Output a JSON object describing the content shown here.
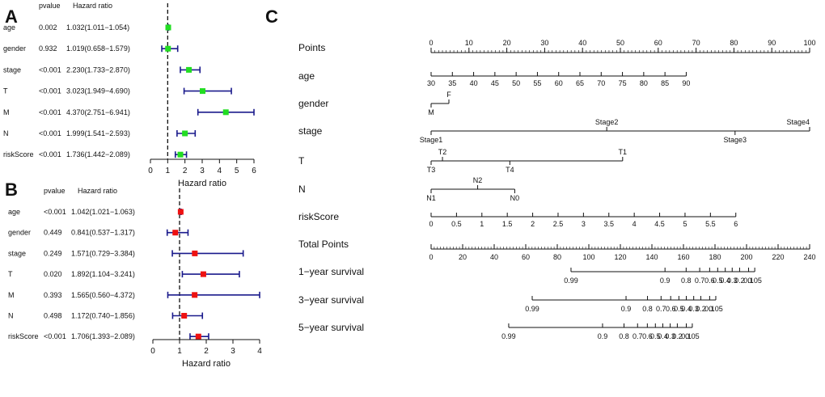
{
  "panels": {
    "A": "A",
    "B": "B",
    "C": "C"
  },
  "forest_headers": {
    "pvalue": "pvalue",
    "hr": "Hazard ratio"
  },
  "chart_data": [
    {
      "type": "forest",
      "panel": "A",
      "xlabel": "Hazard ratio",
      "xlim": [
        0,
        6
      ],
      "xticks": [
        0,
        1,
        2,
        3,
        4,
        5,
        6
      ],
      "reference_line": 1,
      "marker_color": "#22dd22",
      "ci_color": "#1a1a8c",
      "rows": [
        {
          "label": "age",
          "pvalue": "0.002",
          "hr_text": "1.032(1.011−1.054)",
          "hr": 1.032,
          "lo": 1.011,
          "hi": 1.054
        },
        {
          "label": "gender",
          "pvalue": "0.932",
          "hr_text": "1.019(0.658−1.579)",
          "hr": 1.019,
          "lo": 0.658,
          "hi": 1.579
        },
        {
          "label": "stage",
          "pvalue": "<0.001",
          "hr_text": "2.230(1.733−2.870)",
          "hr": 2.23,
          "lo": 1.733,
          "hi": 2.87
        },
        {
          "label": "T",
          "pvalue": "<0.001",
          "hr_text": "3.023(1.949−4.690)",
          "hr": 3.023,
          "lo": 1.949,
          "hi": 4.69
        },
        {
          "label": "M",
          "pvalue": "<0.001",
          "hr_text": "4.370(2.751−6.941)",
          "hr": 4.37,
          "lo": 2.751,
          "hi": 6.941
        },
        {
          "label": "N",
          "pvalue": "<0.001",
          "hr_text": "1.999(1.541−2.593)",
          "hr": 1.999,
          "lo": 1.541,
          "hi": 2.593
        },
        {
          "label": "riskScore",
          "pvalue": "<0.001",
          "hr_text": "1.736(1.442−2.089)",
          "hr": 1.736,
          "lo": 1.442,
          "hi": 2.089
        }
      ]
    },
    {
      "type": "forest",
      "panel": "B",
      "xlabel": "Hazard ratio",
      "xlim": [
        0,
        4
      ],
      "xticks": [
        0,
        1,
        2,
        3,
        4
      ],
      "reference_line": 1,
      "marker_color": "#ee1111",
      "ci_color": "#1a1a8c",
      "rows": [
        {
          "label": "age",
          "pvalue": "<0.001",
          "hr_text": "1.042(1.021−1.063)",
          "hr": 1.042,
          "lo": 1.021,
          "hi": 1.063
        },
        {
          "label": "gender",
          "pvalue": "0.449",
          "hr_text": "0.841(0.537−1.317)",
          "hr": 0.841,
          "lo": 0.537,
          "hi": 1.317
        },
        {
          "label": "stage",
          "pvalue": "0.249",
          "hr_text": "1.571(0.729−3.384)",
          "hr": 1.571,
          "lo": 0.729,
          "hi": 3.384
        },
        {
          "label": "T",
          "pvalue": "0.020",
          "hr_text": "1.892(1.104−3.241)",
          "hr": 1.892,
          "lo": 1.104,
          "hi": 3.241
        },
        {
          "label": "M",
          "pvalue": "0.393",
          "hr_text": "1.565(0.560−4.372)",
          "hr": 1.565,
          "lo": 0.56,
          "hi": 4.372
        },
        {
          "label": "N",
          "pvalue": "0.498",
          "hr_text": "1.172(0.740−1.856)",
          "hr": 1.172,
          "lo": 0.74,
          "hi": 1.856
        },
        {
          "label": "riskScore",
          "pvalue": "<0.001",
          "hr_text": "1.706(1.393−2.089)",
          "hr": 1.706,
          "lo": 1.393,
          "hi": 2.089
        }
      ]
    },
    {
      "type": "nomogram",
      "panel": "C",
      "points_scale": [
        0,
        100
      ],
      "total_points_scale": [
        0,
        240
      ],
      "rows": [
        {
          "label": "Points",
          "kind": "points",
          "range": [
            0,
            100
          ],
          "labels": [
            0,
            10,
            20,
            30,
            40,
            50,
            60,
            70,
            80,
            90,
            100
          ],
          "minor_step": 1
        },
        {
          "label": "age",
          "kind": "linear",
          "from": 30,
          "to": 90,
          "labels": [
            "30",
            "35",
            "40",
            "45",
            "50",
            "55",
            "60",
            "65",
            "70",
            "75",
            "80",
            "85",
            "90"
          ],
          "values": [
            30,
            35,
            40,
            45,
            50,
            55,
            60,
            65,
            70,
            75,
            80,
            85,
            90
          ],
          "end_points": [
            0,
            67.4
          ]
        },
        {
          "label": "gender",
          "kind": "categorical",
          "cats": [
            {
              "name": "M",
              "pts": 0,
              "pos": "below"
            },
            {
              "name": "F",
              "pts": 4.7,
              "pos": "above"
            }
          ]
        },
        {
          "label": "stage",
          "kind": "categorical",
          "cats": [
            {
              "name": "Stage1",
              "pts": 0,
              "pos": "below"
            },
            {
              "name": "Stage2",
              "pts": 46.4,
              "pos": "above"
            },
            {
              "name": "Stage3",
              "pts": 80.3,
              "pos": "below"
            },
            {
              "name": "Stage4",
              "pts": 100,
              "pos": "above"
            }
          ]
        },
        {
          "label": "T",
          "kind": "categorical",
          "cats": [
            {
              "name": "T3",
              "pts": 0,
              "pos": "below"
            },
            {
              "name": "T2",
              "pts": 3,
              "pos": "above"
            },
            {
              "name": "T4",
              "pts": 20.8,
              "pos": "below"
            },
            {
              "name": "T1",
              "pts": 50.6,
              "pos": "above"
            }
          ]
        },
        {
          "label": "N",
          "kind": "categorical",
          "cats": [
            {
              "name": "N1",
              "pts": 0,
              "pos": "below"
            },
            {
              "name": "N2",
              "pts": 12.3,
              "pos": "above"
            },
            {
              "name": "N0",
              "pts": 22.1,
              "pos": "below"
            }
          ]
        },
        {
          "label": "riskScore",
          "kind": "linear",
          "from": 0,
          "to": 6,
          "labels": [
            "0",
            "0.5",
            "1",
            "1.5",
            "2",
            "2.5",
            "3",
            "3.5",
            "4",
            "4.5",
            "5",
            "5.5",
            "6"
          ],
          "values": [
            0,
            0.5,
            1,
            1.5,
            2,
            2.5,
            3,
            3.5,
            4,
            4.5,
            5,
            5.5,
            6
          ],
          "end_points": [
            0,
            80.5
          ]
        },
        {
          "label": "Total Points",
          "kind": "total",
          "range": [
            0,
            240
          ],
          "labels": [
            0,
            20,
            40,
            60,
            80,
            100,
            120,
            140,
            160,
            180,
            200,
            220,
            240
          ],
          "minor_step": 2
        },
        {
          "label": "1−year survival",
          "kind": "survival",
          "ticks": [
            {
              "label": "0.99",
              "total": 88.7
            },
            {
              "label": "0.9",
              "total": 148.3
            },
            {
              "label": "0.8",
              "total": 161.7
            },
            {
              "label": "0.7",
              "total": 170.3
            },
            {
              "label": "0.6",
              "total": 176.6
            },
            {
              "label": "0.5",
              "total": 181.7
            },
            {
              "label": "0.4",
              "total": 186.5
            },
            {
              "label": "0.3",
              "total": 190.9
            },
            {
              "label": "0.2",
              "total": 195.6
            },
            {
              "label": "0.1",
              "total": 201.3
            },
            {
              "label": "0.05",
              "total": 205.2
            }
          ]
        },
        {
          "label": "3−year survival",
          "kind": "survival",
          "ticks": [
            {
              "label": "0.99",
              "total": 64.1
            },
            {
              "label": "0.9",
              "total": 123.6
            },
            {
              "label": "0.8",
              "total": 137.2
            },
            {
              "label": "0.7",
              "total": 145.8
            },
            {
              "label": "0.6",
              "total": 151.9
            },
            {
              "label": "0.5",
              "total": 157.1
            },
            {
              "label": "0.4",
              "total": 161.8
            },
            {
              "label": "0.3",
              "total": 166.5
            },
            {
              "label": "0.2",
              "total": 171.0
            },
            {
              "label": "0.1",
              "total": 176.6
            },
            {
              "label": "0.05",
              "total": 180.5
            }
          ]
        },
        {
          "label": "5−year survival",
          "kind": "survival",
          "ticks": [
            {
              "label": "0.99",
              "total": 49.2
            },
            {
              "label": "0.9",
              "total": 108.7
            },
            {
              "label": "0.8",
              "total": 122.3
            },
            {
              "label": "0.7",
              "total": 130.9
            },
            {
              "label": "0.6",
              "total": 137.1
            },
            {
              "label": "0.5",
              "total": 142.2
            },
            {
              "label": "0.4",
              "total": 146.9
            },
            {
              "label": "0.3",
              "total": 151.6
            },
            {
              "label": "0.2",
              "total": 156.1
            },
            {
              "label": "0.1",
              "total": 161.8
            },
            {
              "label": "0.05",
              "total": 165.6
            }
          ]
        }
      ]
    }
  ]
}
